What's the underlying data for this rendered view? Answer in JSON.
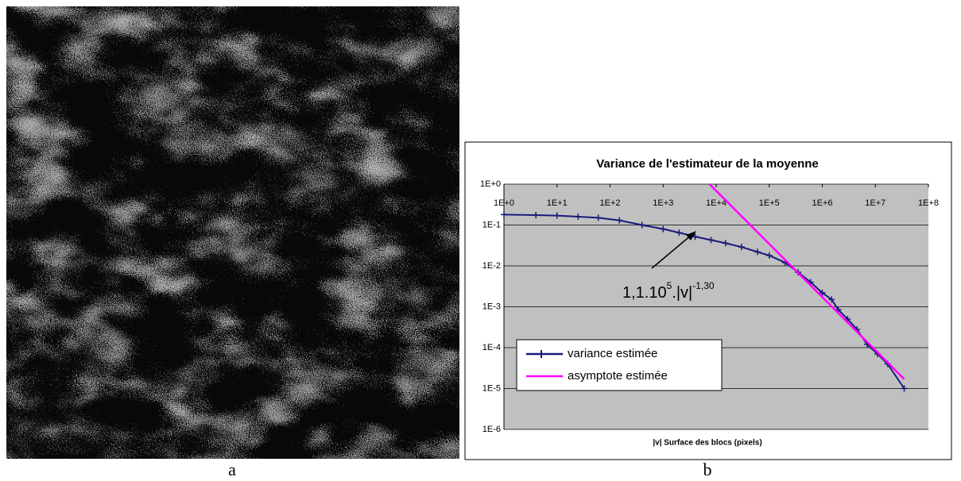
{
  "captions": [
    "a",
    "b"
  ],
  "chart_data": {
    "type": "line",
    "title": "Variance de l'estimateur de la moyenne",
    "x_label": "|v|  Surface des blocs (pixels)",
    "annotation": [
      "1,1.10",
      "5",
      ".|v|",
      "-1,30"
    ],
    "log_x": true,
    "log_y": true,
    "grid": true,
    "legend": "lower-left",
    "xlim": [
      1,
      100000000
    ],
    "ylim": [
      1e-06,
      1
    ],
    "xticks": [
      {
        "value": 1,
        "label": "1E+0"
      },
      {
        "value": 10,
        "label": "1E+1"
      },
      {
        "value": 100,
        "label": "1E+2"
      },
      {
        "value": 1000,
        "label": "1E+3"
      },
      {
        "value": 10000,
        "label": "1E+4"
      },
      {
        "value": 100000,
        "label": "1E+5"
      },
      {
        "value": 1000000,
        "label": "1E+6"
      },
      {
        "value": 10000000,
        "label": "1E+7"
      },
      {
        "value": 100000000,
        "label": "1E+8"
      }
    ],
    "yticks": [
      {
        "value": 1,
        "label": "1E+0"
      },
      {
        "value": 0.1,
        "label": "1E-1"
      },
      {
        "value": 0.01,
        "label": "1E-2"
      },
      {
        "value": 0.001,
        "label": "1E-3"
      },
      {
        "value": 0.0001,
        "label": "1E-4"
      },
      {
        "value": 1e-05,
        "label": "1E-5"
      },
      {
        "value": 1e-06,
        "label": "1E-6"
      }
    ],
    "series": [
      {
        "name": "variance estimée",
        "color": "#1a1a7a",
        "marker": "+",
        "x": [
          1,
          4,
          10,
          25,
          60,
          150,
          400,
          1000,
          2000,
          4000,
          8000,
          15000,
          30000,
          60000,
          100000,
          200000,
          350000,
          600000,
          1000000,
          1500000,
          2000000,
          3000000,
          4500000,
          7000000,
          11000000,
          17000000,
          35000000
        ],
        "values": [
          0.18,
          0.175,
          0.17,
          0.16,
          0.15,
          0.13,
          0.1,
          0.08,
          0.065,
          0.052,
          0.043,
          0.036,
          0.029,
          0.022,
          0.018,
          0.012,
          0.007,
          0.004,
          0.0022,
          0.0015,
          0.00085,
          0.0005,
          0.00028,
          0.00012,
          7e-05,
          4e-05,
          1e-05
        ]
      },
      {
        "name": "asymptote estimée",
        "color": "#ff00ff",
        "x": [
          7500,
          35000000
        ],
        "values": [
          1,
          1.7e-05
        ]
      }
    ]
  }
}
